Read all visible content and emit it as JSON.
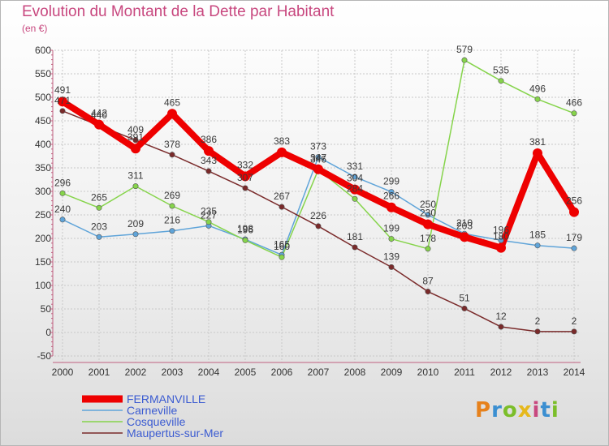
{
  "header": {
    "title": "Evolution du Montant de la Dette par Habitant",
    "subtitle": "(en €)"
  },
  "logo": {
    "text": "Proxiti",
    "colors": [
      "#e6811c",
      "#3b8fd1",
      "#7bbe2a",
      "#e6b81c",
      "#c8487f",
      "#3b8fd1",
      "#7bbe2a"
    ]
  },
  "chart_data": {
    "type": "line",
    "title": "Evolution du Montant de la Dette par Habitant",
    "subtitle": "(en €)",
    "x": [
      2000,
      2001,
      2002,
      2003,
      2004,
      2005,
      2006,
      2007,
      2008,
      2009,
      2010,
      2011,
      2012,
      2013,
      2014
    ],
    "ylim": [
      -50,
      600
    ],
    "yticks": [
      -50,
      0,
      50,
      100,
      150,
      200,
      250,
      300,
      350,
      400,
      450,
      500,
      550,
      600
    ],
    "grid": true,
    "legend_position": "bottom-left",
    "series": [
      {
        "name": "FERMANVILLE",
        "color": "#ee0000",
        "bold": true,
        "values": [
          491,
          442,
          391,
          465,
          386,
          332,
          383,
          347,
          304,
          266,
          230,
          203,
          180,
          381,
          256
        ]
      },
      {
        "name": "Carneville",
        "color": "#5fa4d9",
        "values": [
          240,
          203,
          209,
          216,
          227,
          198,
          165,
          373,
          331,
          299,
          250,
          210,
          196,
          185,
          179
        ]
      },
      {
        "name": "Cosqueville",
        "color": "#86d44b",
        "values": [
          296,
          265,
          311,
          269,
          235,
          196,
          160,
          346,
          284,
          199,
          178,
          579,
          535,
          496,
          466
        ]
      },
      {
        "name": "Maupertus-sur-Mer",
        "color": "#7a2a2a",
        "values": [
          471,
          440,
          409,
          378,
          343,
          307,
          267,
          226,
          181,
          139,
          87,
          51,
          12,
          2,
          2
        ]
      }
    ]
  }
}
